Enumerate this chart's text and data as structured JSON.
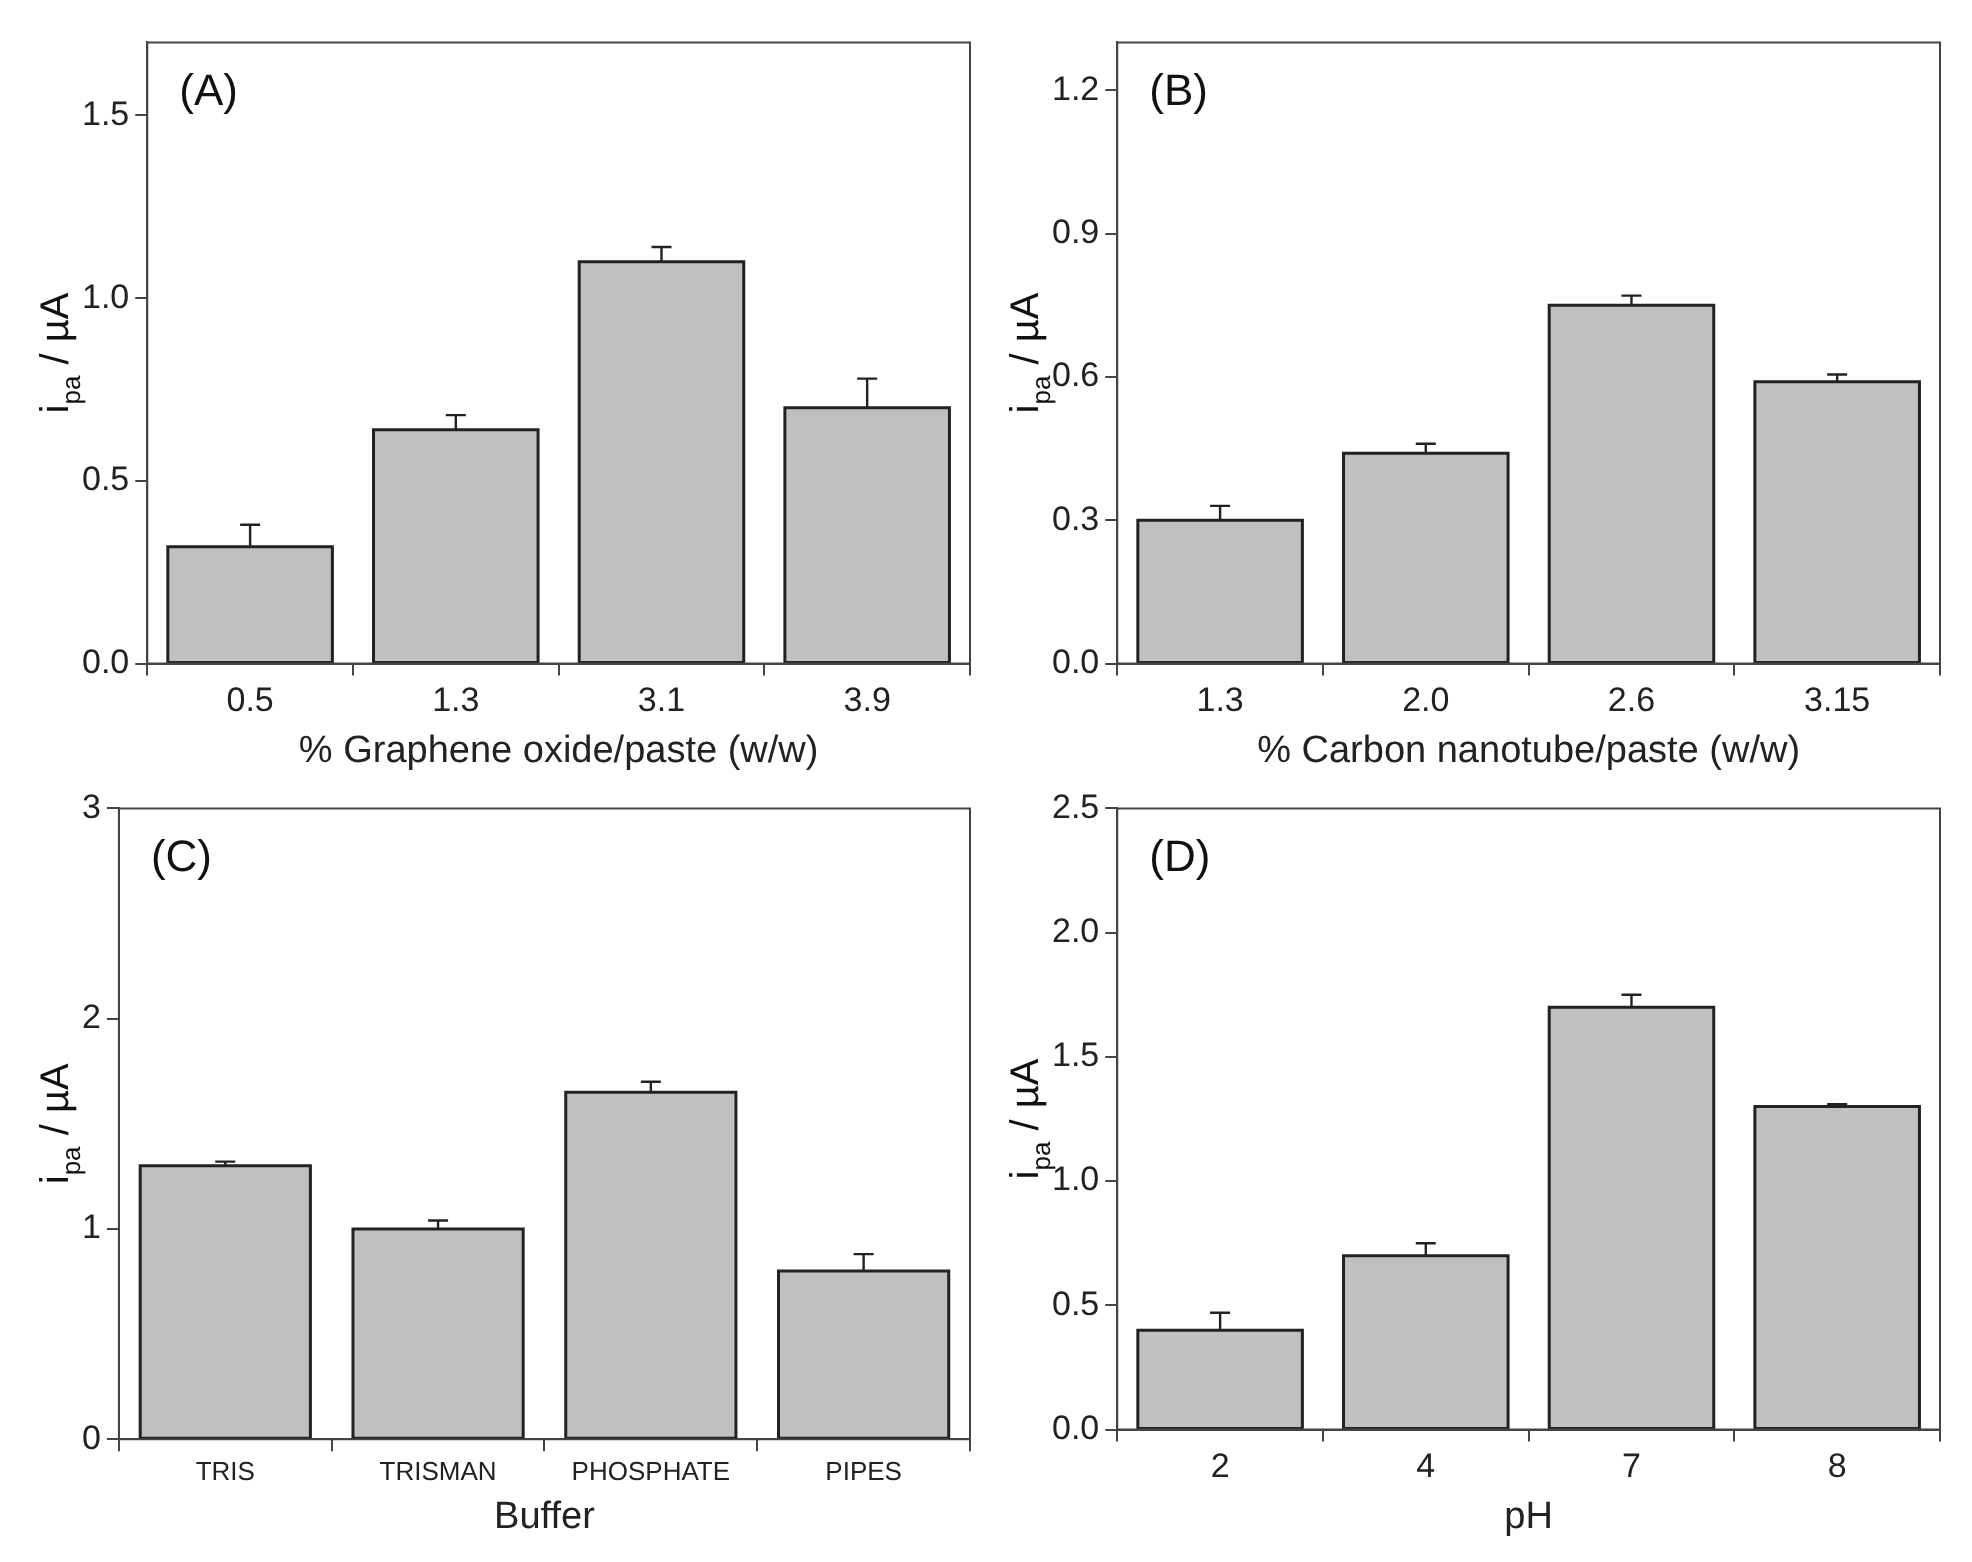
{
  "chart_data": [
    {
      "type": "bar",
      "categories": [
        "0.5",
        "1.3",
        "3.1",
        "3.9"
      ],
      "values": [
        0.32,
        0.64,
        1.1,
        0.7
      ],
      "errors": [
        [
          0.32,
          0.38
        ],
        [
          0.64,
          0.68
        ],
        [
          1.1,
          1.14
        ],
        [
          0.7,
          0.78
        ]
      ],
      "color": "#c0c0c0",
      "xlabel": "% Graphene oxide/paste (w/w)",
      "ylabel": "i$_{pa}$ / µA",
      "ylim": [
        0,
        1.7
      ],
      "yticks": [
        {
          "value": 0,
          "label": "0.0"
        },
        {
          "value": 0.5,
          "label": "0.5"
        },
        {
          "value": 1,
          "label": "1.0"
        },
        {
          "value": 1.5,
          "label": "1.5"
        }
      ],
      "annotations": [
        "(A)"
      ],
      "grid": false,
      "legend": false
    },
    {
      "type": "bar",
      "categories": [
        "1.3",
        "2.0",
        "2.6",
        "3.15"
      ],
      "values": [
        0.3,
        0.44,
        0.75,
        0.59
      ],
      "errors": [
        [
          0.3,
          0.33
        ],
        [
          0.44,
          0.46
        ],
        [
          0.75,
          0.77
        ],
        [
          0.59,
          0.605
        ]
      ],
      "color": "#c0c0c0",
      "xlabel": "% Carbon nanotube/paste (w/w)",
      "ylabel": "i$_{pa}$ / µA",
      "ylim": [
        0,
        1.3
      ],
      "yticks": [
        {
          "value": 0,
          "label": "0.0"
        },
        0.3,
        0.6,
        0.9,
        1.2
      ],
      "annotations": [
        "(B)"
      ],
      "grid": false,
      "legend": false
    },
    {
      "type": "bar",
      "categories": [
        "TRIS",
        "TRISMAN",
        "PHOSPHATE",
        "PIPES"
      ],
      "values": [
        1.3,
        1.0,
        1.65,
        0.8
      ],
      "errors": [
        [
          1.3,
          1.32
        ],
        [
          1.0,
          1.04
        ],
        [
          1.65,
          1.7
        ],
        [
          0.8,
          0.88
        ]
      ],
      "color": "#c0c0c0",
      "xlabel": "Buffer",
      "ylabel": "i$_{pa}$ / µA",
      "ylim": [
        0,
        3
      ],
      "yticks": [
        0,
        1,
        2,
        3
      ],
      "annotations": [
        "(C)"
      ],
      "grid": false,
      "legend": false
    },
    {
      "type": "bar",
      "categories": [
        "2",
        "4",
        "7",
        "8"
      ],
      "values": [
        0.4,
        0.7,
        1.7,
        1.3
      ],
      "errors": [
        [
          0.4,
          0.47
        ],
        [
          0.7,
          0.75
        ],
        [
          1.7,
          1.75
        ],
        [
          1.3,
          1.31
        ]
      ],
      "color": "#c0c0c0",
      "xlabel": "pH",
      "ylabel": "i$_{pa}$ / µA",
      "ylim": [
        0,
        2.5
      ],
      "yticks": [
        {
          "value": 0,
          "label": "0.0"
        },
        0.5,
        {
          "value": 1,
          "label": "1.0"
        },
        1.5,
        {
          "value": 2,
          "label": "2.0"
        },
        2.5
      ],
      "annotations": [
        "(D)"
      ],
      "grid": false,
      "legend": false
    }
  ]
}
